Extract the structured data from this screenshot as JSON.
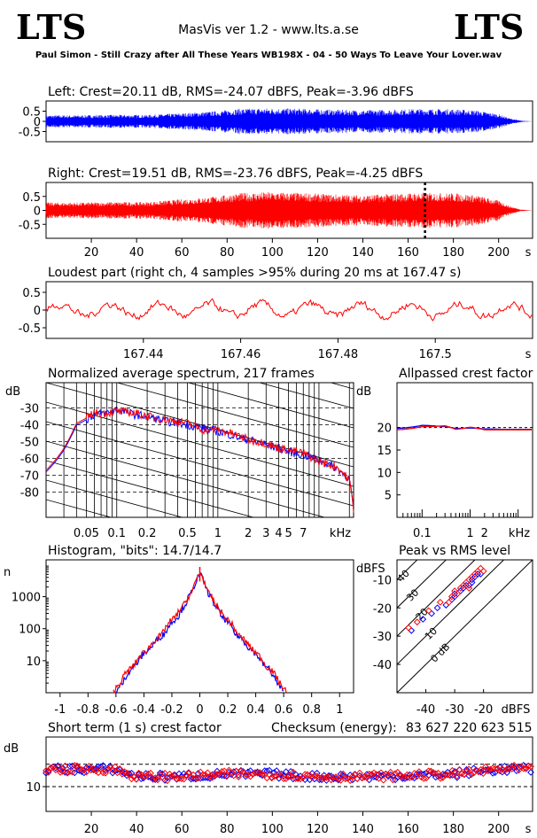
{
  "header": {
    "logo_left": "LTS",
    "logo_right": "LTS",
    "app_title": "MasVis ver 1.2 - www.lts.a.se",
    "file_title": "Paul Simon - Still Crazy after All These Years WB198X - 04 - 50 Ways To Leave Your Lover.wav"
  },
  "colors": {
    "left": "#0000ff",
    "right": "#ff0000",
    "axis": "#000000"
  },
  "chart_data": [
    {
      "id": "left",
      "type": "area",
      "title": "Left: Crest=20.11 dB, RMS=-24.07 dBFS, Peak=-3.96 dBFS",
      "ylim": [
        -1,
        1
      ],
      "yticks": [
        0.5,
        0,
        -0.5
      ],
      "ytick_labels": [
        "0.5",
        "0",
        "-0.5"
      ],
      "xlim": [
        0,
        215
      ],
      "envelope": {
        "x": [
          0,
          15,
          30,
          45,
          60,
          75,
          85,
          100,
          115,
          125,
          140,
          155,
          165,
          180,
          190,
          200,
          205,
          210,
          215
        ],
        "amp": [
          0.3,
          0.3,
          0.32,
          0.32,
          0.4,
          0.5,
          0.62,
          0.65,
          0.62,
          0.58,
          0.55,
          0.58,
          0.62,
          0.6,
          0.55,
          0.35,
          0.15,
          0.03,
          0
        ]
      }
    },
    {
      "id": "right",
      "type": "area",
      "title": "Right: Crest=19.51 dB, RMS=-23.76 dBFS, Peak=-4.25 dBFS",
      "ylim": [
        -1,
        1
      ],
      "yticks": [
        0.5,
        0,
        -0.5
      ],
      "ytick_labels": [
        "0.5",
        "0",
        "-0.5"
      ],
      "xlim": [
        0,
        215
      ],
      "marker_x": 167.47,
      "xticks": [
        20,
        40,
        60,
        80,
        100,
        120,
        140,
        160,
        180,
        200
      ],
      "xunit": "s",
      "envelope": {
        "x": [
          0,
          15,
          30,
          45,
          60,
          75,
          85,
          100,
          115,
          125,
          140,
          155,
          165,
          180,
          190,
          200,
          205,
          210,
          215
        ],
        "amp": [
          0.28,
          0.28,
          0.3,
          0.3,
          0.4,
          0.5,
          0.62,
          0.66,
          0.62,
          0.58,
          0.55,
          0.6,
          0.64,
          0.62,
          0.55,
          0.35,
          0.15,
          0.03,
          0
        ]
      }
    },
    {
      "id": "loudest",
      "type": "line",
      "title": "Loudest part (right ch, 4 samples >95% during 20 ms at 167.47 s)",
      "ylim": [
        -0.8,
        0.8
      ],
      "yticks": [
        0.5,
        0,
        -0.5
      ],
      "ytick_labels": [
        "0.5",
        "0",
        "-0.5"
      ],
      "xlim": [
        167.42,
        167.52
      ],
      "xticks": [
        167.44,
        167.46,
        167.48,
        167.5
      ],
      "xtick_labels": [
        "167.44",
        "167.46",
        "167.48",
        "167.5"
      ],
      "xunit": "s"
    },
    {
      "id": "spectrum",
      "type": "line",
      "title": "Normalized average spectrum, 217 frames",
      "ylabel": "dB",
      "xunit": "kHz",
      "yticks": [
        -30,
        -40,
        -50,
        -60,
        -70,
        -80
      ],
      "ylim": [
        -95,
        -15
      ],
      "xticks": [
        0.05,
        0.1,
        0.2,
        0.5,
        1,
        2,
        3,
        4,
        5,
        7
      ],
      "xtick_labels": [
        "0.05",
        "0.1",
        "0.2",
        "0.5",
        "1",
        "2",
        "3",
        "4",
        "5",
        "7"
      ],
      "xlim": [
        0.02,
        22
      ],
      "series": [
        {
          "color": "#0000ff",
          "x": [
            0.02,
            0.03,
            0.04,
            0.06,
            0.08,
            0.1,
            0.15,
            0.2,
            0.3,
            0.5,
            0.7,
            1,
            1.5,
            2,
            3,
            4,
            5,
            7,
            10,
            15,
            20,
            22
          ],
          "y": [
            -68,
            -55,
            -40,
            -34,
            -33,
            -31,
            -34,
            -35,
            -38,
            -40,
            -42,
            -44,
            -47,
            -49,
            -52,
            -54,
            -56,
            -58,
            -61,
            -66,
            -72,
            -90
          ]
        },
        {
          "color": "#ff0000",
          "x": [
            0.02,
            0.03,
            0.04,
            0.06,
            0.08,
            0.1,
            0.15,
            0.2,
            0.3,
            0.5,
            0.7,
            1,
            1.5,
            2,
            3,
            4,
            5,
            7,
            10,
            15,
            20,
            22
          ],
          "y": [
            -67,
            -54,
            -39,
            -33,
            -33,
            -32,
            -33,
            -35,
            -37,
            -39,
            -43,
            -43,
            -46,
            -49,
            -51,
            -54,
            -55,
            -57,
            -62,
            -65,
            -73,
            -90
          ]
        }
      ]
    },
    {
      "id": "crest",
      "type": "line",
      "title": "Allpassed crest factor",
      "ylabel": "dB",
      "xunit": "kHz",
      "yticks": [
        20,
        15,
        10,
        5
      ],
      "ylim": [
        0,
        30
      ],
      "xticks": [
        0.1,
        1,
        2
      ],
      "xtick_labels": [
        "0.1",
        "1",
        "2"
      ],
      "xlim": [
        0.03,
        20
      ],
      "series": [
        {
          "color": "#0000ff",
          "x": [
            0.03,
            0.05,
            0.1,
            0.3,
            0.5,
            1,
            2,
            5,
            10,
            20
          ],
          "y": [
            19.8,
            20.0,
            20.5,
            20.2,
            19.8,
            19.9,
            19.7,
            19.6,
            19.6,
            19.6
          ]
        },
        {
          "color": "#ff0000",
          "x": [
            0.03,
            0.05,
            0.1,
            0.3,
            0.5,
            1,
            2,
            5,
            10,
            20
          ],
          "y": [
            19.5,
            19.7,
            20.2,
            20.4,
            19.6,
            20.1,
            19.5,
            19.5,
            19.5,
            19.5
          ]
        }
      ]
    },
    {
      "id": "histogram",
      "type": "line",
      "title": "Histogram, \"bits\": 14.7/14.7",
      "ylabel": "n",
      "yticks": [
        1000,
        100,
        10
      ],
      "ytick_labels": [
        "1000",
        "100",
        "10"
      ],
      "xticks": [
        -1,
        -0.8,
        -0.6,
        -0.4,
        -0.2,
        0,
        0.2,
        0.4,
        0.6,
        0.8,
        1
      ],
      "xtick_labels": [
        "-1",
        "-0.8",
        "-0.6",
        "-0.4",
        "-0.2",
        "0",
        "0.2",
        "0.4",
        "0.6",
        "0.8",
        "1"
      ],
      "xlim": [
        -1.1,
        1.1
      ],
      "series": [
        {
          "color": "#0000ff",
          "x": [
            -0.6,
            -0.55,
            -0.45,
            -0.35,
            -0.25,
            -0.15,
            -0.1,
            -0.05,
            0,
            0.05,
            0.1,
            0.15,
            0.25,
            0.35,
            0.45,
            0.55,
            0.6
          ],
          "y": [
            1,
            2,
            8,
            25,
            70,
            250,
            600,
            1500,
            5000,
            1500,
            600,
            250,
            70,
            25,
            8,
            2,
            1
          ]
        },
        {
          "color": "#ff0000",
          "x": [
            -0.62,
            -0.57,
            -0.47,
            -0.37,
            -0.27,
            -0.17,
            -0.11,
            -0.05,
            0,
            0.05,
            0.11,
            0.17,
            0.27,
            0.37,
            0.47,
            0.57,
            0.62
          ],
          "y": [
            1,
            2,
            7,
            23,
            65,
            240,
            580,
            1450,
            5500,
            1450,
            580,
            240,
            65,
            23,
            7,
            2,
            1
          ]
        }
      ]
    },
    {
      "id": "peakrms",
      "type": "scatter",
      "title": "Peak vs RMS level",
      "ylabel": "dBFS",
      "xunit": "dBFS",
      "yticks": [
        -10,
        -20,
        -30,
        -40
      ],
      "ylim": [
        -50,
        -3
      ],
      "xticks": [
        -40,
        -30,
        -20
      ],
      "xlim": [
        -50,
        -3
      ],
      "diag_labels": [
        "40",
        "30",
        "20",
        "10",
        "0 dB"
      ],
      "series": [
        {
          "color": "#0000ff",
          "points": [
            [
              -45,
              -28
            ],
            [
              -41,
              -24
            ],
            [
              -38,
              -22
            ],
            [
              -36,
              -20
            ],
            [
              -33,
              -19
            ],
            [
              -31,
              -17
            ],
            [
              -30,
              -15
            ],
            [
              -28,
              -14
            ],
            [
              -27,
              -13
            ],
            [
              -25,
              -12
            ],
            [
              -24,
              -10
            ],
            [
              -23,
              -9
            ],
            [
              -22,
              -8
            ],
            [
              -21,
              -8
            ],
            [
              -30,
              -16
            ],
            [
              -26,
              -12
            ],
            [
              -24,
              -11
            ]
          ]
        },
        {
          "color": "#ff0000",
          "points": [
            [
              -46,
              -27
            ],
            [
              -43,
              -25
            ],
            [
              -39,
              -21
            ],
            [
              -35,
              -18
            ],
            [
              -32,
              -18
            ],
            [
              -30,
              -14
            ],
            [
              -29,
              -15
            ],
            [
              -27,
              -12
            ],
            [
              -26,
              -11
            ],
            [
              -25,
              -10
            ],
            [
              -24,
              -9
            ],
            [
              -22,
              -7
            ],
            [
              -21,
              -6
            ],
            [
              -20,
              -7
            ],
            [
              -28,
              -13
            ],
            [
              -23,
              -8
            ],
            [
              -31,
              -16
            ],
            [
              -25,
              -13
            ]
          ]
        }
      ]
    },
    {
      "id": "shortcrest",
      "type": "scatter",
      "title": "Short term (1 s) crest factor",
      "ylabel": "dB",
      "checksum_label": "Checksum (energy):",
      "checksum_value": "83 627 220 623 515",
      "yticks": [
        10
      ],
      "ytick_labels": [
        "10"
      ],
      "ylim": [
        0,
        30
      ],
      "dashed": [
        10,
        19
      ],
      "xticks": [
        20,
        40,
        60,
        80,
        100,
        120,
        140,
        160,
        180,
        200
      ],
      "xlim": [
        0,
        215
      ],
      "xunit": "s",
      "level": {
        "x": [
          0,
          20,
          30,
          40,
          60,
          80,
          100,
          120,
          140,
          160,
          180,
          200,
          215
        ],
        "y": [
          17,
          17,
          17,
          14,
          14,
          15,
          15,
          14,
          14,
          14.5,
          15,
          17,
          17
        ]
      }
    }
  ]
}
